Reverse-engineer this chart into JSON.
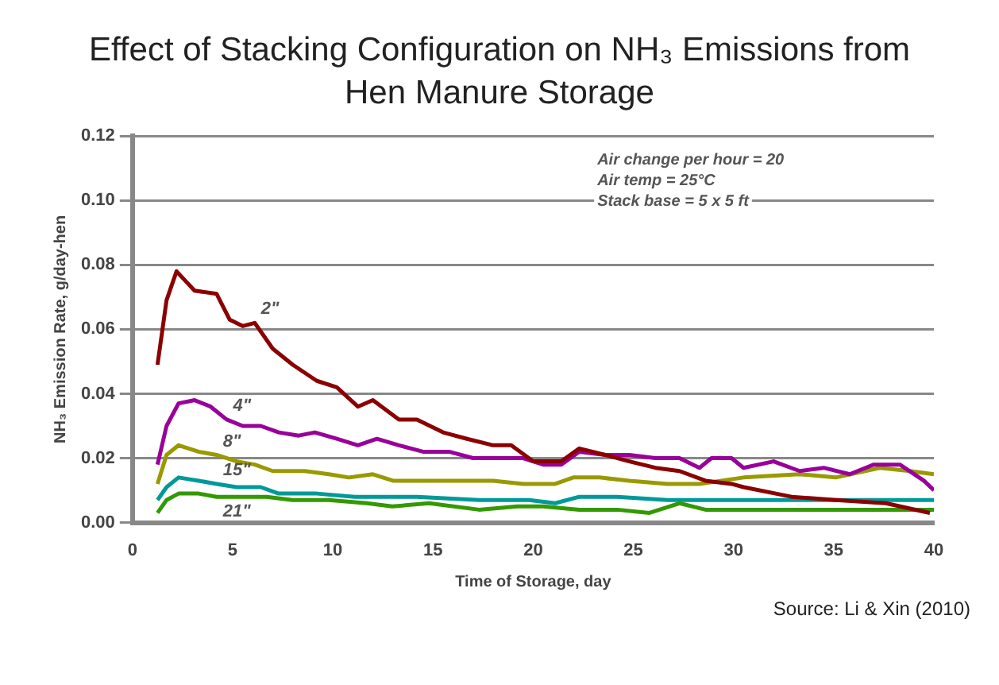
{
  "chart_data": {
    "type": "line",
    "title": "Effect of Stacking Configuration on NH₃ Emissions from Hen Manure Storage",
    "xlabel": "Time of Storage, day",
    "ylabel": "NH₃ Emission Rate, g/day-hen",
    "annotations": [
      "Air change per hour = 20",
      "Air temp = 25°C",
      "Stack base = 5 x 5 ft",
      "Source: Li & Xin (2010)"
    ],
    "xlim": [
      0,
      40
    ],
    "xticks": [
      0,
      5,
      10,
      15,
      20,
      25,
      30,
      35,
      40
    ],
    "ylim": [
      0,
      0.12
    ],
    "yticks": [
      {
        "value": 0,
        "label": "0.00"
      },
      {
        "value": 0.02,
        "label": "0.02"
      },
      {
        "value": 0.04,
        "label": "0.04"
      },
      {
        "value": 0.06,
        "label": "0.06"
      },
      {
        "value": 0.08,
        "label": "0.08"
      },
      {
        "value": 0.1,
        "label": "0.10"
      },
      {
        "value": 0.12,
        "label": "0.12"
      }
    ],
    "grid": "y",
    "legend": false,
    "marker": "none",
    "line_style": "solid",
    "series": [
      {
        "name": "2\"",
        "color": "#8b0000",
        "x": [
          1.25,
          1.7,
          2.2,
          2.65,
          3.1,
          4.2,
          4.85,
          5.5,
          6.1,
          7,
          8,
          9.2,
          10.2,
          11.25,
          12,
          13.3,
          14.2,
          15.5,
          16.7,
          18,
          18.9,
          20,
          21.4,
          22.3,
          23.6,
          24.8,
          26.1,
          27.3,
          28.6,
          29.9,
          30.5,
          32.9,
          35.1,
          37.6,
          39.8
        ],
        "values": [
          0.049,
          0.069,
          0.078,
          0.075,
          0.072,
          0.071,
          0.063,
          0.061,
          0.062,
          0.054,
          0.049,
          0.044,
          0.042,
          0.036,
          0.038,
          0.032,
          0.032,
          0.028,
          0.026,
          0.024,
          0.024,
          0.019,
          0.019,
          0.023,
          0.021,
          0.019,
          0.017,
          0.016,
          0.013,
          0.012,
          0.011,
          0.008,
          0.007,
          0.006,
          0.003
        ]
      },
      {
        "name": "4\"",
        "color": "#990099",
        "x": [
          1.25,
          1.7,
          2.3,
          3.1,
          3.9,
          4.7,
          5.5,
          6.4,
          7.3,
          8.3,
          9.1,
          10.2,
          11.25,
          12.2,
          13.3,
          14.5,
          15.8,
          17,
          18.3,
          19.5,
          20.5,
          21.4,
          22.3,
          23.6,
          24.8,
          26.1,
          27.3,
          28.3,
          28.9,
          29.9,
          30.5,
          32,
          33.3,
          34.5,
          35.8,
          37,
          38.3,
          39.5,
          40
        ],
        "values": [
          0.018,
          0.03,
          0.037,
          0.038,
          0.036,
          0.032,
          0.03,
          0.03,
          0.028,
          0.027,
          0.028,
          0.026,
          0.024,
          0.026,
          0.024,
          0.022,
          0.022,
          0.02,
          0.02,
          0.02,
          0.018,
          0.018,
          0.022,
          0.021,
          0.021,
          0.02,
          0.02,
          0.017,
          0.02,
          0.02,
          0.017,
          0.019,
          0.016,
          0.017,
          0.015,
          0.018,
          0.018,
          0.013,
          0.01
        ]
      },
      {
        "name": "8\"",
        "color": "#999900",
        "x": [
          1.25,
          1.7,
          2.3,
          3.3,
          4.2,
          5.2,
          6.1,
          7,
          8.6,
          9.8,
          10.8,
          12,
          13,
          14.2,
          16.1,
          18,
          19.5,
          21.1,
          22,
          23.3,
          24.8,
          26.7,
          28.3,
          30.5,
          33.3,
          35.1,
          37.3,
          38.8,
          40
        ],
        "values": [
          0.012,
          0.021,
          0.024,
          0.022,
          0.021,
          0.019,
          0.018,
          0.016,
          0.016,
          0.015,
          0.014,
          0.015,
          0.013,
          0.013,
          0.013,
          0.013,
          0.012,
          0.012,
          0.014,
          0.014,
          0.013,
          0.012,
          0.012,
          0.014,
          0.015,
          0.014,
          0.017,
          0.016,
          0.015
        ]
      },
      {
        "name": "15\"",
        "color": "#009999",
        "x": [
          1.25,
          1.7,
          2.3,
          3.3,
          4.2,
          5.2,
          6.4,
          7.3,
          9.2,
          11.1,
          12.7,
          14.2,
          17.3,
          19.8,
          21.1,
          22.3,
          24.2,
          26.7,
          29.9,
          33,
          36,
          38,
          40
        ],
        "values": [
          0.007,
          0.011,
          0.014,
          0.013,
          0.012,
          0.011,
          0.011,
          0.009,
          0.009,
          0.008,
          0.008,
          0.008,
          0.007,
          0.007,
          0.006,
          0.008,
          0.008,
          0.007,
          0.007,
          0.007,
          0.007,
          0.007,
          0.007
        ]
      },
      {
        "name": "21\"",
        "color": "#339900",
        "x": [
          1.25,
          1.7,
          2.3,
          3.3,
          4.2,
          5.5,
          6.7,
          7.98,
          9.8,
          11.7,
          12.97,
          14.8,
          17.3,
          19.2,
          20.5,
          22.3,
          24.2,
          25.8,
          27.3,
          28.6,
          31,
          34,
          37,
          40
        ],
        "values": [
          0.003,
          0.007,
          0.009,
          0.009,
          0.008,
          0.008,
          0.008,
          0.007,
          0.007,
          0.006,
          0.005,
          0.006,
          0.004,
          0.005,
          0.005,
          0.004,
          0.004,
          0.003,
          0.006,
          0.004,
          0.004,
          0.004,
          0.004,
          0.004
        ]
      }
    ]
  }
}
